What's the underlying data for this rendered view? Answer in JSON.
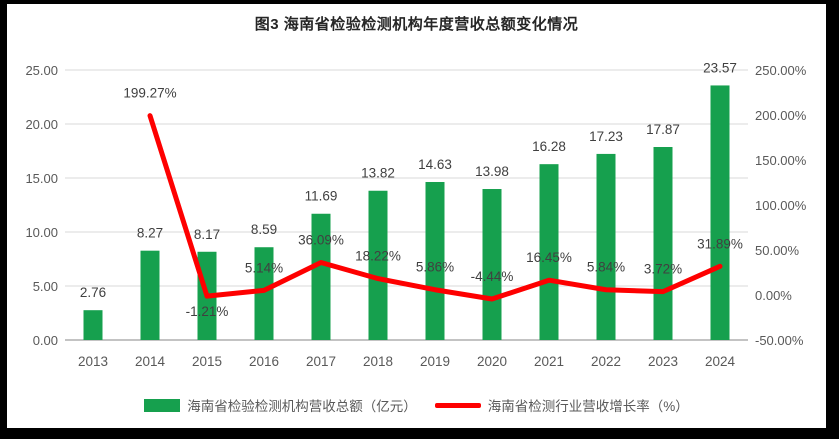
{
  "title": "图3 海南省检验检测机构年度营收总额变化情况",
  "colors": {
    "bar": "#16A04E",
    "line": "#FE0000",
    "grid": "#D9D9D9",
    "axis_line": "#C3C3C3",
    "tick_text": "#595959",
    "data_label": "#404040"
  },
  "legend": {
    "items": [
      {
        "label": "海南省检验检测机构营收总额（亿元）",
        "marker": "bar",
        "color": "#16A04E"
      },
      {
        "label": "海南省检测行业营收增长率（%）",
        "marker": "line",
        "color": "#FE0000"
      }
    ]
  },
  "chart_data": {
    "type": "bar",
    "subtype": "combo-bar-line-dual-axis",
    "title": "图3 海南省检验检测机构年度营收总额变化情况",
    "categories": [
      "2013",
      "2014",
      "2015",
      "2016",
      "2017",
      "2018",
      "2019",
      "2020",
      "2021",
      "2022",
      "2023",
      "2024"
    ],
    "series": [
      {
        "name": "海南省检验检测机构营收总额（亿元）",
        "type": "bar",
        "axis": "left",
        "color": "#16A04E",
        "values": [
          2.76,
          8.27,
          8.17,
          8.59,
          11.69,
          13.82,
          14.63,
          13.98,
          16.28,
          17.23,
          17.87,
          23.57
        ],
        "labels": [
          "2.76",
          "8.27",
          "8.17",
          "8.59",
          "11.69",
          "13.82",
          "14.63",
          "13.98",
          "16.28",
          "17.23",
          "17.87",
          "23.57"
        ]
      },
      {
        "name": "海南省检测行业营收增长率（%）",
        "type": "line",
        "axis": "right",
        "color": "#FE0000",
        "values": [
          null,
          199.27,
          -1.21,
          5.14,
          36.09,
          18.22,
          5.86,
          -4.44,
          16.45,
          5.84,
          3.72,
          31.89
        ],
        "labels": [
          null,
          "199.27%",
          "-1.21%",
          "5.14%",
          "36.09%",
          "18.22%",
          "5.86%",
          "-4.44%",
          "16.45%",
          "5.84%",
          "3.72%",
          "31.89%"
        ],
        "label_below_indices": [
          2
        ]
      }
    ],
    "left_axis": {
      "ticks": [
        "25.00",
        "20.00",
        "15.00",
        "10.00",
        "5.00",
        "0.00"
      ],
      "min": 0,
      "max": 25
    },
    "right_axis": {
      "ticks": [
        "250.00%",
        "200.00%",
        "150.00%",
        "100.00%",
        "50.00%",
        "0.00%",
        "-50.00%"
      ],
      "min": -50,
      "max": 250
    },
    "grid": true,
    "legend_position": "bottom"
  }
}
